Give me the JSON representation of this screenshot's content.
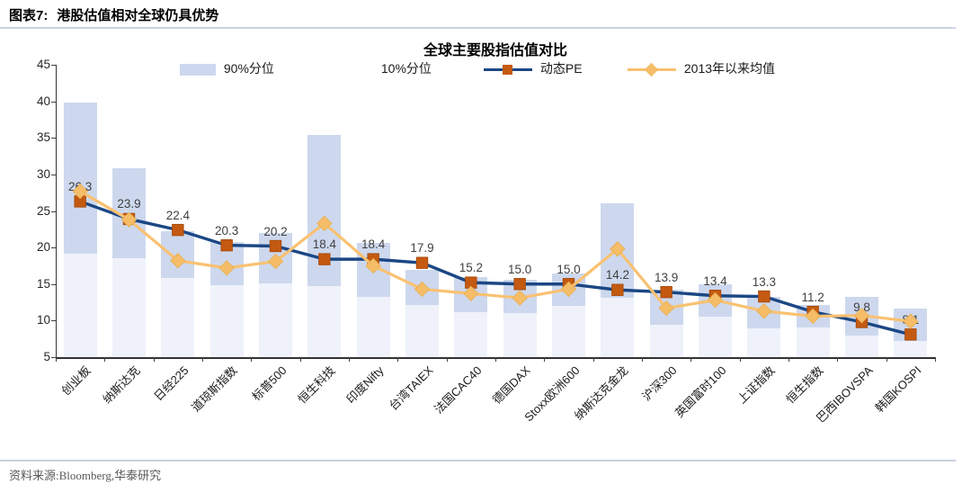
{
  "header": {
    "figure_label": "图表7:",
    "figure_title": "港股估值相对全球仍具优势"
  },
  "chart": {
    "title": "全球主要股指估值对比",
    "legend": [
      {
        "label": "90%分位",
        "swatch": "light-blue-bar"
      },
      {
        "label": "10%分位",
        "swatch": "blank"
      },
      {
        "label": "动态PE",
        "swatch": "navy-line-orange-square"
      },
      {
        "label": "2013年以来均值",
        "swatch": "orange-line-diamond"
      }
    ]
  },
  "chart_data": {
    "type": "combo-floating-bar-and-lines",
    "title": "全球主要股指估值对比",
    "categories": [
      "创业板",
      "纳斯达克",
      "日经225",
      "道琼斯指数",
      "标普500",
      "恒生科技",
      "印度Nifty",
      "台湾TAIEX",
      "法国CAC40",
      "德国DAX",
      "Stoxx欧洲600",
      "纳斯达克金龙",
      "沪深300",
      "英国富时100",
      "上证指数",
      "恒生指数",
      "巴西IBOVSPA",
      "韩国KOSPI"
    ],
    "series": [
      {
        "name": "90%分位",
        "type": "range-bar-top",
        "values": [
          39.8,
          30.8,
          22.2,
          20.8,
          22.0,
          35.4,
          20.6,
          16.9,
          16.0,
          15.6,
          16.4,
          26.0,
          14.2,
          15.0,
          13.2,
          12.2,
          13.2,
          11.7
        ]
      },
      {
        "name": "10%分位",
        "type": "range-bar-bottom",
        "values": [
          19.2,
          18.6,
          15.8,
          14.9,
          15.1,
          14.7,
          13.3,
          12.2,
          11.1,
          11.0,
          12.0,
          13.1,
          9.4,
          10.6,
          8.9,
          9.1,
          8.0,
          7.2
        ]
      },
      {
        "name": "动态PE",
        "type": "line",
        "marker": "square",
        "data_labels": true,
        "values": [
          26.3,
          23.9,
          22.4,
          20.3,
          20.2,
          18.4,
          18.4,
          17.9,
          15.2,
          15.0,
          15.0,
          14.2,
          13.9,
          13.4,
          13.3,
          11.2,
          9.8,
          8.1
        ]
      },
      {
        "name": "2013年以来均值",
        "type": "line",
        "marker": "diamond",
        "data_labels": false,
        "values": [
          27.7,
          23.8,
          18.2,
          17.2,
          18.1,
          23.3,
          17.5,
          14.3,
          13.7,
          13.1,
          14.3,
          19.8,
          11.7,
          12.8,
          11.3,
          10.6,
          10.7,
          9.9
        ]
      }
    ],
    "ylim": [
      5,
      45
    ],
    "ytick_step": 5,
    "ytick_labels": [
      "5",
      "10",
      "15",
      "20",
      "25",
      "30",
      "35",
      "40",
      "45"
    ],
    "grid": false,
    "legend_position": "top"
  },
  "accent_colors": {
    "range_bar": "#cdd8ee",
    "base_column": "#eff2fa",
    "pe_line": "#1b4784",
    "pe_marker": "#c45a11",
    "pe_marker_border": "#a94c0d",
    "mean_line": "#f9c171",
    "mean_marker": "#f5bd68",
    "mean_marker_border": "#eab256",
    "data_label": "#3f3f3f",
    "divider_rule": "#c9d3e1"
  },
  "footer": {
    "source": "资料来源:Bloomberg,华泰研究"
  }
}
